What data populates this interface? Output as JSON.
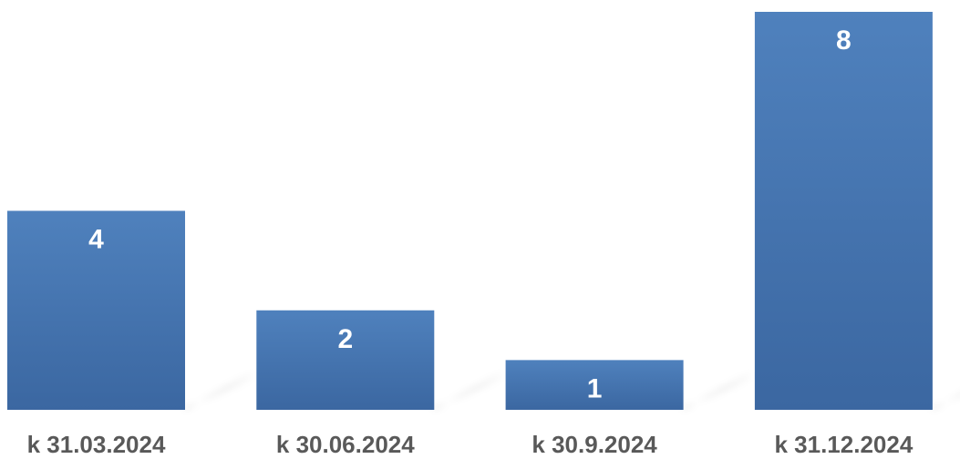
{
  "chart_data": {
    "type": "bar",
    "categories": [
      "k 31.03.2024",
      "k 30.06.2024",
      "k 30.9.2024",
      "k 31.12.2024"
    ],
    "values": [
      4,
      2,
      1,
      8
    ],
    "title": "",
    "xlabel": "",
    "ylabel": "",
    "ylim": [
      0,
      8
    ],
    "grid": false,
    "data_labels": true,
    "colors": {
      "bar_top": "#4f81bd",
      "bar_bottom": "#3b67a1",
      "label": "#ffffff",
      "category_text": "#595959"
    }
  }
}
